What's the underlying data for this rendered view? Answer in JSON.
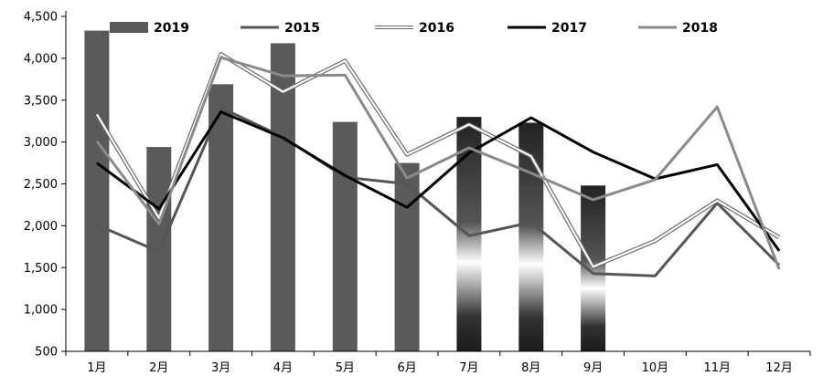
{
  "chart_data": {
    "type": "bar",
    "categories": [
      "1月",
      "2月",
      "3月",
      "4月",
      "5月",
      "6月",
      "7月",
      "8月",
      "9月",
      "10月",
      "11月",
      "12月"
    ],
    "ylim": [
      500,
      4500
    ],
    "yticks": [
      "500",
      "1,000",
      "1,500",
      "2,000",
      "2,500",
      "3,000",
      "3,500",
      "4,000",
      "4,500"
    ],
    "ytick_values": [
      500,
      1000,
      1500,
      2000,
      2500,
      3000,
      3500,
      4000,
      4500
    ],
    "grid": false,
    "legend_position": "top",
    "bar_series": {
      "name": "2019",
      "values": [
        4330,
        2940,
        3690,
        4180,
        3240,
        2750,
        3300,
        3230,
        2480,
        null,
        null,
        null
      ],
      "color": "#5a5a5a"
    },
    "line_series": [
      {
        "name": "2015",
        "values": [
          2010,
          1690,
          3410,
          3060,
          2580,
          2500,
          1880,
          2040,
          1430,
          1400,
          2270,
          1530
        ],
        "color": "#555555"
      },
      {
        "name": "2016",
        "values": [
          3330,
          2090,
          4050,
          3600,
          3970,
          2850,
          3210,
          2830,
          1510,
          1820,
          2300,
          1860
        ],
        "color": "#ffffff"
      },
      {
        "name": "2017",
        "values": [
          2750,
          2200,
          3360,
          3050,
          2600,
          2220,
          2870,
          3290,
          2880,
          2560,
          2730,
          1700
        ],
        "color": "#000000"
      },
      {
        "name": "2018",
        "values": [
          3010,
          2020,
          4010,
          3790,
          3800,
          2570,
          2930,
          2630,
          2310,
          2550,
          3420,
          1480
        ],
        "color": "#8a8a8a"
      }
    ]
  }
}
